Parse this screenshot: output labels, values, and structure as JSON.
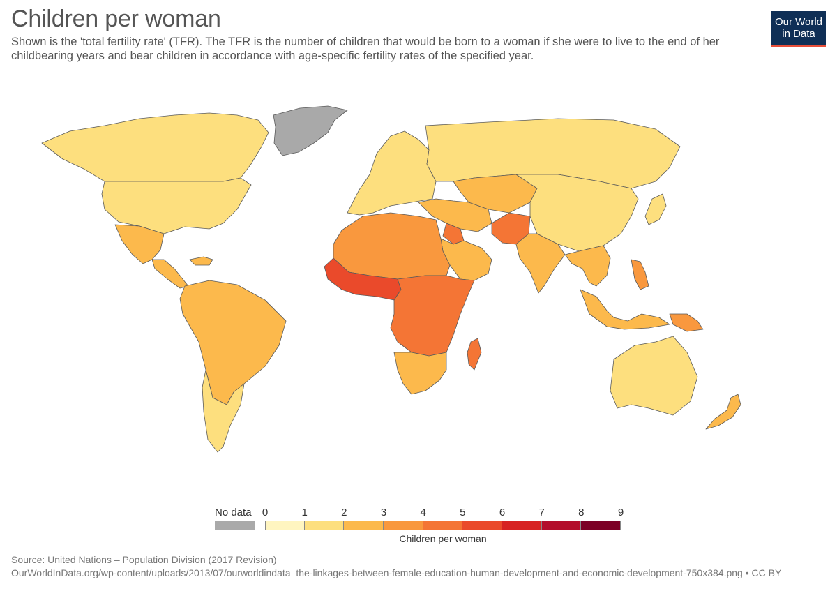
{
  "header": {
    "title": "Children per woman",
    "subtitle": "Shown is the 'total fertility rate' (TFR). The TFR is the number of children that would be born to a woman if she were to live to the end of her childbearing years and bear children in accordance with age-specific fertility rates of the specified year."
  },
  "logo": {
    "line1": "Our World",
    "line2": "in Data",
    "background": "#0f2f56",
    "accent": "#e84e39"
  },
  "legend": {
    "no_data_label": "No data",
    "no_data_color": "#a9a9a9",
    "title": "Children per woman",
    "ticks": [
      "0",
      "1",
      "2",
      "3",
      "4",
      "5",
      "6",
      "7",
      "8",
      "9"
    ],
    "bins": [
      {
        "min": 0,
        "max": 1,
        "color": "#fff5c0"
      },
      {
        "min": 1,
        "max": 2,
        "color": "#fddf7e"
      },
      {
        "min": 2,
        "max": 3,
        "color": "#fcb94c"
      },
      {
        "min": 3,
        "max": 4,
        "color": "#f9983e"
      },
      {
        "min": 4,
        "max": 5,
        "color": "#f47535"
      },
      {
        "min": 5,
        "max": 6,
        "color": "#ea4a2b"
      },
      {
        "min": 6,
        "max": 7,
        "color": "#d72222"
      },
      {
        "min": 7,
        "max": 8,
        "color": "#b30d2b"
      },
      {
        "min": 8,
        "max": 9,
        "color": "#7c0025"
      }
    ]
  },
  "footer": {
    "source": "Source: United Nations – Population Division (2017 Revision)",
    "url": "OurWorldInData.org/wp-content/uploads/2013/07/ourworldindata_the-linkages-between-female-education-human-development-and-economic-development-750x384.png • CC BY"
  },
  "map_data": {
    "type": "choropleth",
    "variable": "Children per woman",
    "regions": [
      {
        "name": "Canada",
        "tfr": 1.6
      },
      {
        "name": "United States",
        "tfr": 1.9
      },
      {
        "name": "Greenland",
        "tfr": null
      },
      {
        "name": "Mexico",
        "tfr": 2.3
      },
      {
        "name": "Central America",
        "tfr": 2.6
      },
      {
        "name": "Caribbean",
        "tfr": 2.3
      },
      {
        "name": "South America",
        "tfr": 2.1
      },
      {
        "name": "Argentina & Chile",
        "tfr": 1.9
      },
      {
        "name": "Western Europe",
        "tfr": 1.6
      },
      {
        "name": "Russia",
        "tfr": 1.6
      },
      {
        "name": "Central Asia",
        "tfr": 2.6
      },
      {
        "name": "Middle East",
        "tfr": 2.8
      },
      {
        "name": "Arabian Peninsula",
        "tfr": 2.5
      },
      {
        "name": "Iraq & Syria",
        "tfr": 4.2
      },
      {
        "name": "Afghanistan & Pakistan",
        "tfr": 4.0
      },
      {
        "name": "North Africa & Sahel",
        "tfr": 3.9
      },
      {
        "name": "West Africa",
        "tfr": 5.2
      },
      {
        "name": "Central & East Africa",
        "tfr": 4.6
      },
      {
        "name": "Southern Africa",
        "tfr": 2.4
      },
      {
        "name": "Madagascar",
        "tfr": 4.4
      },
      {
        "name": "India",
        "tfr": 2.4
      },
      {
        "name": "China",
        "tfr": 1.6
      },
      {
        "name": "Southeast Asia",
        "tfr": 2.3
      },
      {
        "name": "Indonesia",
        "tfr": 2.4
      },
      {
        "name": "Philippines",
        "tfr": 3.0
      },
      {
        "name": "Japan",
        "tfr": 1.4
      },
      {
        "name": "Australia",
        "tfr": 1.8
      },
      {
        "name": "New Zealand",
        "tfr": 2.0
      },
      {
        "name": "Papua New Guinea",
        "tfr": 3.7
      }
    ]
  }
}
